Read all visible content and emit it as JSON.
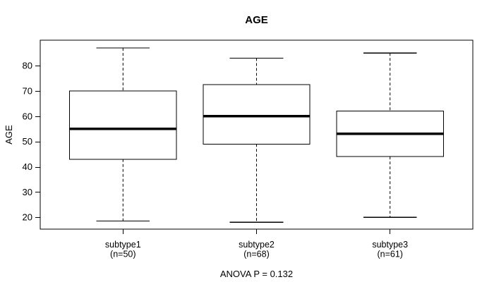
{
  "chart_data": {
    "type": "boxplot",
    "title": "AGE",
    "ylabel": "AGE",
    "xlabel": "",
    "annotation": "ANOVA P = 0.132",
    "yticks": [
      20,
      30,
      40,
      50,
      60,
      70,
      80
    ],
    "ylim": [
      15.3,
      90.1
    ],
    "grid": false,
    "legend": false,
    "groups": [
      {
        "label": "subtype1",
        "n_label": "(n=50)",
        "n": 50,
        "whisker_low": 18.5,
        "q1": 43,
        "median": 55,
        "q3": 70,
        "whisker_high": 87
      },
      {
        "label": "subtype2",
        "n_label": "(n=68)",
        "n": 68,
        "whisker_low": 18,
        "q1": 49,
        "median": 60,
        "q3": 72.5,
        "whisker_high": 83
      },
      {
        "label": "subtype3",
        "n_label": "(n=61)",
        "n": 61,
        "whisker_low": 20,
        "q1": 44,
        "median": 53,
        "q3": 62,
        "whisker_high": 85
      }
    ],
    "colors": {
      "line": "#000000",
      "box_fill": "#ffffff",
      "background": "#ffffff"
    }
  }
}
